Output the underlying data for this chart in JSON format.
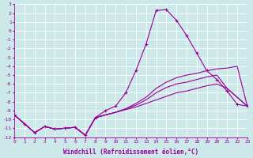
{
  "xlabel": "Windchill (Refroidissement éolien,°C)",
  "bg_color": "#cce8e8",
  "grid_color": "#ffffff",
  "line_color": "#990099",
  "xmin": 0,
  "xmax": 23,
  "ymin": -12,
  "ymax": 3,
  "x_hours": [
    0,
    1,
    2,
    3,
    4,
    5,
    6,
    7,
    8,
    9,
    10,
    11,
    12,
    13,
    14,
    15,
    16,
    17,
    18,
    19,
    20,
    21,
    22,
    23
  ],
  "line_marked_y": [
    -9.5,
    -10.5,
    -11.5,
    -10.8,
    -11.1,
    -11.0,
    -10.9,
    -11.8,
    -9.8,
    -9.0,
    -8.5,
    -7.0,
    -4.5,
    -1.5,
    2.3,
    2.4,
    1.2,
    -0.5,
    -2.5,
    -4.5,
    -5.5,
    -6.8,
    -8.3,
    -8.5
  ],
  "line2_y": [
    -9.5,
    -10.5,
    -11.5,
    -10.8,
    -11.1,
    -11.0,
    -10.9,
    -11.8,
    -9.8,
    -9.5,
    -9.2,
    -8.8,
    -8.2,
    -7.5,
    -6.5,
    -5.8,
    -5.3,
    -5.0,
    -4.8,
    -4.5,
    -4.3,
    -4.2,
    -4.0,
    -8.5
  ],
  "line3_y": [
    -9.5,
    -10.5,
    -11.5,
    -10.8,
    -11.1,
    -11.0,
    -10.9,
    -11.8,
    -9.8,
    -9.5,
    -9.2,
    -8.8,
    -8.4,
    -7.8,
    -7.0,
    -6.4,
    -6.0,
    -5.8,
    -5.5,
    -5.2,
    -5.0,
    -6.5,
    -7.5,
    -8.5
  ],
  "line4_y": [
    -9.5,
    -10.5,
    -11.5,
    -10.8,
    -11.1,
    -11.0,
    -10.9,
    -11.8,
    -9.8,
    -9.5,
    -9.2,
    -8.9,
    -8.6,
    -8.2,
    -7.8,
    -7.4,
    -7.0,
    -6.8,
    -6.5,
    -6.2,
    -6.0,
    -6.5,
    -7.5,
    -8.5
  ]
}
